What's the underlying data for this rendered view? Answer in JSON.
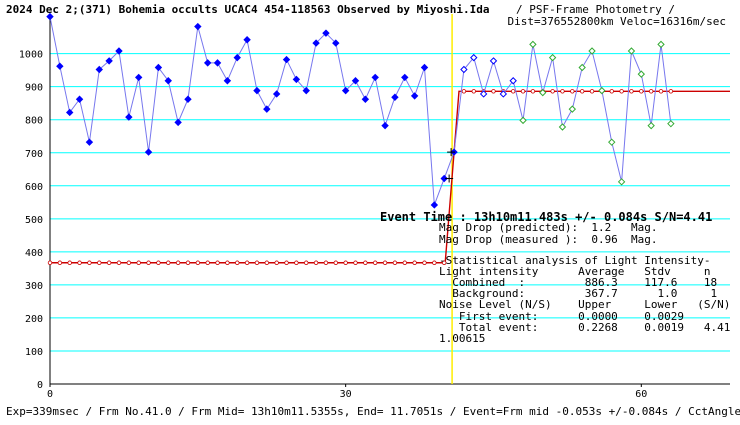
{
  "header": {
    "title_bold": "2024 Dec 2;(371) Bohemia occults UCAC4 454-118563 Observed by Miyoshi.Ida",
    "title_rest": "/ PSF-Frame Photometry /",
    "title_line2": "Dist=376552800km Veloc=16316m/sec"
  },
  "footer": "Exp=339msec / Frm No.41.0 / Frm Mid= 13h10m11.5355s, End= 11.7051s / Event=Frm mid -0.053s +/-0.084s / CctAngle=0.0deg",
  "event_time": "Event Time : 13h10m11.483s  +/- 0.084s  S/N=4.41",
  "stats": [
    "Mag Drop (predicted):  1.2   Mag.",
    "Mag Drop (measured ):  0.96  Mag.",
    "-Statistical analysis of Light Intensity-",
    "Light intensity      Average   Stdv     n",
    "  Combined  :         886.3    117.6    18",
    "  Background:         367.7      1.0     1",
    "Noise Level (N/S)    Upper     Lower   (S/N)",
    "   First event:      0.0000    0.0029",
    "   Total event:      0.2268    0.0019   4.41",
    "1.00615"
  ],
  "colors": {
    "grid": "#00ffff",
    "primary_series": "#0000ff",
    "secondary_series": "#33aa33",
    "connect_line": "#7777ee",
    "model": "#cc0000",
    "event_marker": "#ffee00"
  },
  "chart_data": {
    "type": "line",
    "title": "2024 Dec 2;(371) Bohemia occults UCAC4 454-118563 Observed by Miyoshi.Ida",
    "xlabel": "",
    "ylabel": "",
    "xlim": [
      0,
      69
    ],
    "ylim": [
      0,
      1120
    ],
    "yticks": [
      0,
      100,
      200,
      300,
      400,
      500,
      600,
      700,
      800,
      900,
      1000
    ],
    "xticks": [
      0,
      30,
      60
    ],
    "grid": true,
    "event_frame": 40.8,
    "series": [
      {
        "style": "blue-diamond",
        "x": [
          0,
          1,
          2,
          3,
          4,
          5,
          6,
          7,
          8,
          9,
          10,
          11,
          12,
          13,
          14,
          15,
          16,
          17,
          18,
          19,
          20,
          21,
          22,
          23,
          24,
          25,
          26,
          27,
          28,
          29,
          30,
          31,
          32,
          33,
          34,
          35,
          36,
          37,
          38,
          39,
          40,
          41,
          42,
          43,
          44,
          45,
          46,
          47
        ],
        "values": [
          1112,
          962,
          822,
          862,
          732,
          952,
          978,
          1008,
          808,
          928,
          702,
          958,
          918,
          792,
          862,
          1082,
          972,
          972,
          918,
          988,
          1042,
          888,
          832,
          878,
          982,
          922,
          888,
          1032,
          1062,
          1032,
          888,
          918,
          862,
          928,
          782,
          868,
          928,
          872,
          958,
          542,
          622,
          702,
          952,
          988,
          878,
          978,
          878,
          918
        ]
      },
      {
        "style": "green-diamond",
        "x": [
          48,
          49,
          50,
          51,
          52,
          53,
          54,
          55,
          56,
          57,
          58,
          59,
          60,
          61,
          62,
          63
        ],
        "values": [
          798,
          1028,
          882,
          988,
          778,
          832,
          958,
          1008,
          888,
          732,
          612,
          1008,
          938,
          782,
          1028,
          788
        ]
      },
      {
        "style": "model",
        "x": [
          0,
          40,
          40.1,
          41.5,
          69
        ],
        "values": [
          367,
          367,
          367,
          886,
          886
        ]
      }
    ]
  }
}
